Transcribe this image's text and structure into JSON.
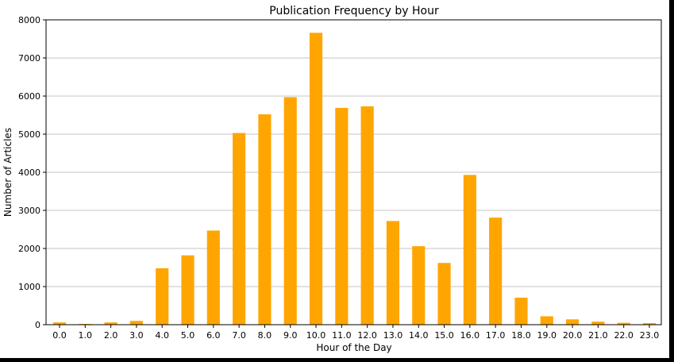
{
  "chart_data": {
    "type": "bar",
    "title": "Publication Frequency by Hour",
    "xlabel": "Hour of the Day",
    "ylabel": "Number of Articles",
    "categories": [
      "0.0",
      "1.0",
      "2.0",
      "3.0",
      "4.0",
      "5.0",
      "6.0",
      "7.0",
      "8.0",
      "9.0",
      "10.0",
      "11.0",
      "12.0",
      "13.0",
      "14.0",
      "15.0",
      "16.0",
      "17.0",
      "18.0",
      "19.0",
      "20.0",
      "21.0",
      "22.0",
      "23.0"
    ],
    "values": [
      60,
      20,
      60,
      100,
      1480,
      1820,
      2470,
      5030,
      5520,
      5970,
      7660,
      5690,
      5730,
      2720,
      2060,
      1620,
      3930,
      2810,
      710,
      220,
      140,
      80,
      50,
      40
    ],
    "ylim": [
      0,
      8000
    ],
    "yticks": [
      0,
      1000,
      2000,
      3000,
      4000,
      5000,
      6000,
      7000,
      8000
    ],
    "grid": "horizontal",
    "bar_color": "#ffa500"
  }
}
